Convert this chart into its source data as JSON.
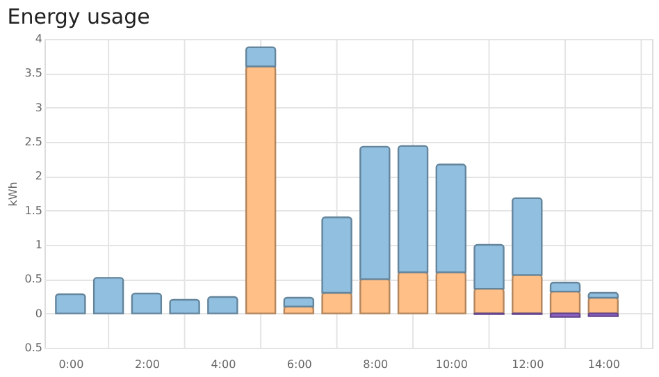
{
  "chart_data": {
    "type": "bar",
    "title": "Energy usage",
    "ylabel": "kWh",
    "stacked": true,
    "grid": true,
    "x": [
      0,
      1,
      2,
      3,
      4,
      5,
      6,
      7,
      8,
      9,
      10,
      11,
      12,
      13,
      14
    ],
    "xlim": [
      -0.5,
      15.1
    ],
    "xticks": [
      {
        "value": 0,
        "label": "0:00"
      },
      {
        "value": 1,
        "label": null
      },
      {
        "value": 2,
        "label": "2:00"
      },
      {
        "value": 3,
        "label": null
      },
      {
        "value": 4,
        "label": "4:00"
      },
      {
        "value": 5,
        "label": null
      },
      {
        "value": 6,
        "label": "6:00"
      },
      {
        "value": 7,
        "label": null
      },
      {
        "value": 8,
        "label": "8:00"
      },
      {
        "value": 9,
        "label": null
      },
      {
        "value": 10,
        "label": "10:00"
      },
      {
        "value": 11,
        "label": null
      },
      {
        "value": 12,
        "label": "12:00"
      },
      {
        "value": 13,
        "label": null
      },
      {
        "value": 14,
        "label": "14:00"
      },
      {
        "value": 15,
        "label": null
      }
    ],
    "ylim": [
      -0.5,
      4
    ],
    "yticks": [
      {
        "value": -0.5,
        "label": "0.5"
      },
      0,
      0.5,
      1,
      1.5,
      2,
      2.5,
      3,
      3.5,
      4
    ],
    "series": [
      {
        "color": "#ffbf86",
        "values": [
          null,
          null,
          null,
          null,
          null,
          3.6,
          0.1,
          0.3,
          0.5,
          0.6,
          0.6,
          0.36,
          0.56,
          0.32,
          0.23
        ]
      },
      {
        "color": "#90bfe0",
        "values": [
          0.28,
          0.52,
          0.29,
          0.2,
          0.24,
          0.28,
          0.13,
          1.1,
          1.93,
          1.84,
          1.57,
          0.64,
          1.12,
          0.13,
          0.07
        ]
      },
      {
        "color": "#8f65c8",
        "values": [
          null,
          null,
          null,
          null,
          null,
          null,
          null,
          null,
          null,
          null,
          null,
          -0.01,
          -0.01,
          -0.05,
          -0.04
        ]
      }
    ]
  }
}
